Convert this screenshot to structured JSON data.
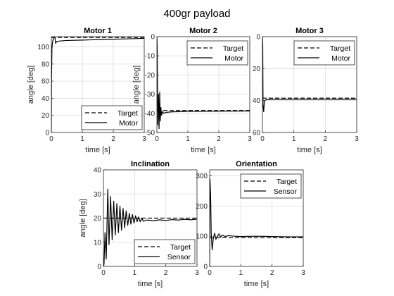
{
  "figure": {
    "title": "400gr payload"
  },
  "chart_data": [
    {
      "type": "line",
      "title": "Motor 1",
      "xlabel": "time [s]",
      "ylabel": "angle [deg]",
      "xlim": [
        0,
        3
      ],
      "ylim": [
        0,
        112
      ],
      "xticks": [
        0,
        1,
        2,
        3
      ],
      "yticks": [
        0,
        20,
        40,
        60,
        80,
        100
      ],
      "grid": true,
      "legend": "bottom-right",
      "series": [
        {
          "name": "Target",
          "style": "dashed",
          "x": [
            0,
            3
          ],
          "y": [
            111,
            111
          ]
        },
        {
          "name": "Motor",
          "style": "solid",
          "x": [
            0,
            0.005,
            0.02,
            0.04,
            0.06,
            0.08,
            0.1,
            0.12,
            0.14,
            0.16,
            0.2,
            0.3,
            0.5,
            1.0,
            1.5,
            2.0,
            2.5,
            3.0
          ],
          "y": [
            0,
            60,
            100,
            106,
            109,
            111,
            111,
            110,
            104,
            106,
            106.5,
            107,
            107.5,
            108,
            108.5,
            109,
            109.5,
            110
          ]
        }
      ]
    },
    {
      "type": "line",
      "title": "Motor 2",
      "xlabel": "time [s]",
      "ylabel": "angle [deg]",
      "xlim": [
        0,
        3
      ],
      "ylim": [
        -50,
        0
      ],
      "xticks": [
        0,
        1,
        2,
        3
      ],
      "yticks": [
        -50,
        -40,
        -30,
        -20,
        -10,
        0
      ],
      "grid": true,
      "legend": "top-right",
      "series": [
        {
          "name": "Target",
          "style": "dashed",
          "x": [
            0,
            3
          ],
          "y": [
            -38.5,
            -38.5
          ]
        },
        {
          "name": "Motor",
          "style": "solid",
          "x": [
            0,
            0.01,
            0.03,
            0.05,
            0.07,
            0.09,
            0.11,
            0.13,
            0.15,
            0.18,
            0.22,
            0.3,
            0.5,
            1.0,
            2.0,
            3.0
          ],
          "y": [
            0,
            -5,
            -46,
            -30,
            -48,
            -29,
            -44,
            -37,
            -41,
            -39,
            -40,
            -39.5,
            -39.2,
            -39.0,
            -38.9,
            -38.8
          ]
        }
      ]
    },
    {
      "type": "line",
      "title": "Motor 3",
      "xlabel": "time [s]",
      "ylabel": "",
      "xlim": [
        0,
        3
      ],
      "ylim": [
        -60,
        0
      ],
      "xticks": [
        0,
        1,
        2,
        3
      ],
      "yticks": [
        -60,
        -40,
        -20,
        0
      ],
      "ytick_labels": [
        "60",
        "40",
        "20",
        "0"
      ],
      "grid": true,
      "legend": "top-right",
      "series": [
        {
          "name": "Target",
          "style": "dashed",
          "x": [
            0,
            3
          ],
          "y": [
            -38.5,
            -38.5
          ]
        },
        {
          "name": "Motor",
          "style": "solid",
          "x": [
            0,
            0.01,
            0.02,
            0.04,
            0.06,
            0.08,
            0.1,
            0.15,
            0.3,
            1.0,
            3.0
          ],
          "y": [
            0,
            -5,
            -43,
            -47,
            -41,
            -40,
            -39.6,
            -39.4,
            -39.3,
            -39.2,
            -39.2
          ]
        }
      ]
    },
    {
      "type": "line",
      "title": "Inclination",
      "xlabel": "time [s]",
      "ylabel": "angle [deg]",
      "xlim": [
        0,
        3
      ],
      "ylim": [
        0,
        40
      ],
      "xticks": [
        0,
        1,
        2,
        3
      ],
      "yticks": [
        0,
        10,
        20,
        30,
        40
      ],
      "grid": true,
      "legend": "bottom-right",
      "series": [
        {
          "name": "Target",
          "style": "dashed",
          "x": [
            0,
            3
          ],
          "y": [
            20,
            20
          ]
        },
        {
          "name": "Sensor",
          "style": "solid",
          "x": [
            0,
            0.02,
            0.05,
            0.09,
            0.14,
            0.18,
            0.23,
            0.28,
            0.33,
            0.38,
            0.43,
            0.48,
            0.53,
            0.58,
            0.63,
            0.68,
            0.73,
            0.78,
            0.83,
            0.88,
            0.93,
            0.98,
            1.03,
            1.08,
            1.13,
            1.18,
            1.23,
            1.28,
            1.4,
            1.6,
            1.8,
            2.0,
            2.2,
            2.4,
            2.6,
            2.8,
            3.0
          ],
          "y": [
            0,
            1,
            14,
            3,
            32,
            9,
            29,
            11,
            27,
            13,
            26,
            14,
            25,
            15,
            24,
            16,
            23,
            17,
            22,
            17.5,
            21.5,
            18,
            21,
            18.5,
            20.5,
            18.5,
            20,
            18.7,
            19.2,
            18.9,
            19.3,
            19.0,
            19.4,
            19.2,
            19.5,
            19.3,
            19.6
          ]
        }
      ]
    },
    {
      "type": "line",
      "title": "Orientation",
      "xlabel": "time [s]",
      "ylabel": "",
      "xlim": [
        0,
        3
      ],
      "ylim": [
        0,
        320
      ],
      "xticks": [
        0,
        1,
        2,
        3
      ],
      "yticks": [
        0,
        100,
        200,
        300
      ],
      "grid": true,
      "legend": "top-right",
      "series": [
        {
          "name": "Target",
          "style": "dashed",
          "x": [
            0,
            3
          ],
          "y": [
            95,
            95
          ]
        },
        {
          "name": "Sensor",
          "style": "solid",
          "x": [
            0,
            0.01,
            0.03,
            0.05,
            0.08,
            0.12,
            0.16,
            0.2,
            0.25,
            0.3,
            0.35,
            0.4,
            0.5,
            0.6,
            0.8,
            1.0,
            1.5,
            2.0,
            2.5,
            3.0
          ],
          "y": [
            0,
            290,
            240,
            110,
            55,
            95,
            110,
            90,
            100,
            108,
            97,
            104,
            99,
            102,
            100,
            99,
            100,
            99,
            98,
            98
          ]
        }
      ]
    }
  ]
}
